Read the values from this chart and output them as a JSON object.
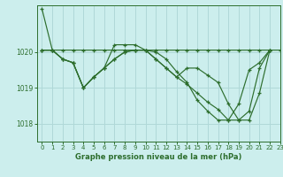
{
  "title": "Graphe pression niveau de la mer (hPa)",
  "bg_color": "#cceeed",
  "grid_color": "#b0d8d8",
  "line_color": "#2d6e2d",
  "marker": "+",
  "xlim": [
    -0.5,
    23
  ],
  "ylim": [
    1017.5,
    1021.3
  ],
  "yticks": [
    1018,
    1019,
    1020
  ],
  "xticks": [
    0,
    1,
    2,
    3,
    4,
    5,
    6,
    7,
    8,
    9,
    10,
    11,
    12,
    13,
    14,
    15,
    16,
    17,
    18,
    19,
    20,
    21,
    22,
    23
  ],
  "series": [
    [
      1021.2,
      1020.05,
      1020.05,
      1020.05,
      1020.05,
      1020.05,
      1020.05,
      1020.05,
      1020.05,
      1020.05,
      1020.05,
      1020.05,
      1020.05,
      1020.05,
      1020.05,
      1020.05,
      1020.05,
      1020.05,
      1020.05,
      1020.05,
      1020.05,
      1020.05,
      1020.05,
      1020.05
    ],
    [
      1020.05,
      1020.05,
      1019.8,
      1019.7,
      1019.0,
      1019.3,
      1019.55,
      1020.2,
      1020.2,
      1020.2,
      1020.05,
      1020.0,
      1019.8,
      1019.45,
      1019.15,
      1018.65,
      1018.35,
      1018.1,
      1018.1,
      1018.55,
      1019.5,
      1019.7,
      1020.05,
      null
    ],
    [
      1020.05,
      1020.05,
      1019.8,
      1019.7,
      1019.0,
      1019.3,
      1019.55,
      1019.8,
      1020.0,
      1020.05,
      1020.05,
      1019.8,
      1019.55,
      1019.3,
      1019.1,
      1018.85,
      1018.6,
      1018.4,
      1018.1,
      1018.1,
      1018.35,
      1019.55,
      1020.05,
      null
    ],
    [
      1020.05,
      1020.05,
      1019.8,
      1019.7,
      1019.0,
      1019.3,
      1019.55,
      1019.8,
      1020.0,
      1020.05,
      1020.05,
      1019.8,
      1019.55,
      1019.3,
      1019.55,
      1019.55,
      1019.35,
      1019.15,
      1018.55,
      1018.1,
      1018.1,
      1018.85,
      1020.05,
      null
    ]
  ]
}
